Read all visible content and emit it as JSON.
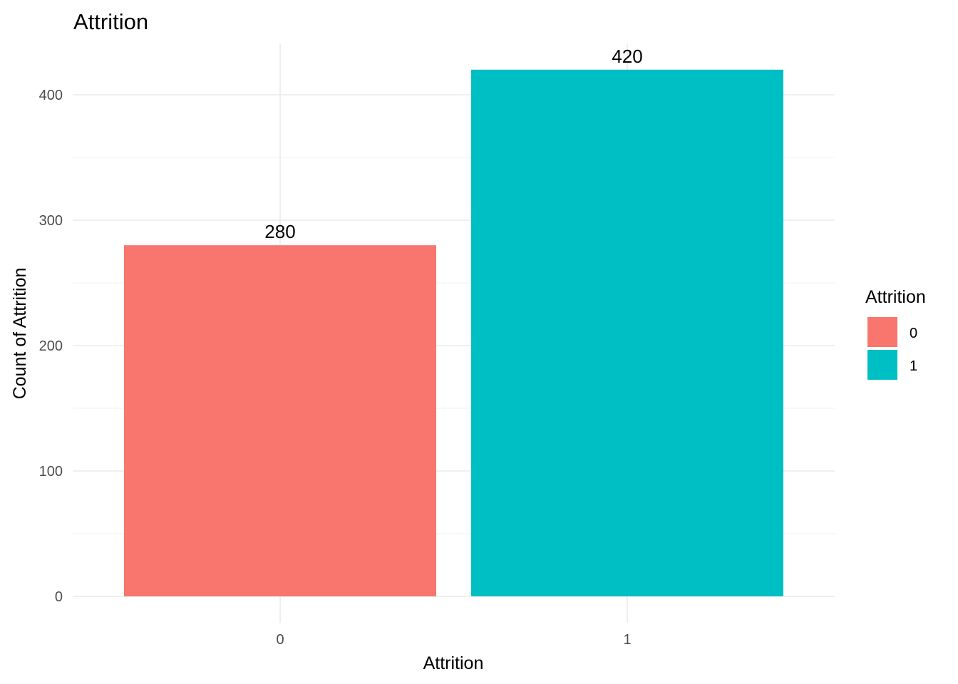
{
  "chart_data": {
    "type": "bar",
    "title": "Attrition",
    "xlabel": "Attrition",
    "ylabel": "Count of Attrition",
    "categories": [
      "0",
      "1"
    ],
    "values": [
      280,
      420
    ],
    "data_labels": [
      "280",
      "420"
    ],
    "ylim": [
      0,
      440
    ],
    "y_ticks": [
      0,
      100,
      200,
      300,
      400
    ],
    "y_tick_labels": [
      "0",
      "100",
      "200",
      "300",
      "400"
    ],
    "grid": true,
    "legend": {
      "title": "Attrition",
      "position": "right",
      "entries": [
        {
          "label": "0",
          "color": "#F8766D"
        },
        {
          "label": "1",
          "color": "#00BFC4"
        }
      ]
    },
    "colors": [
      "#F8766D",
      "#00BFC4"
    ]
  }
}
